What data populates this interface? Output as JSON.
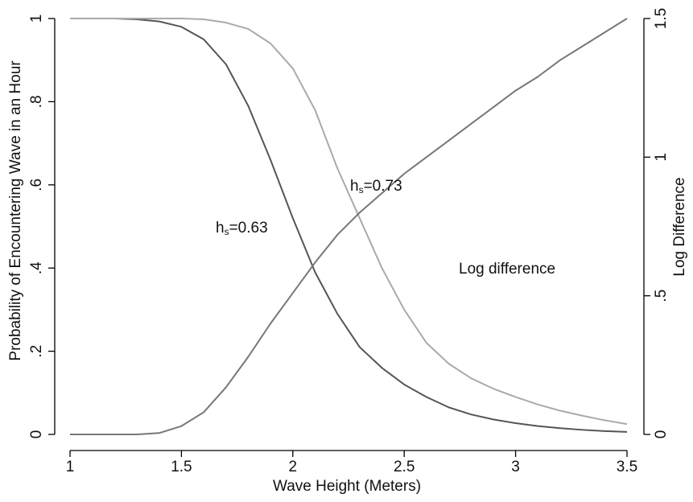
{
  "chart_data": {
    "type": "line",
    "x_label": "Wave Height (Meters)",
    "y_label": "Probability of Encountering Wave in an Hour",
    "y2_label": "Log Difference",
    "x": [
      1.0,
      1.1,
      1.2,
      1.3,
      1.4,
      1.5,
      1.6,
      1.7,
      1.8,
      1.9,
      2.0,
      2.1,
      2.2,
      2.3,
      2.4,
      2.5,
      2.6,
      2.7,
      2.8,
      2.9,
      3.0,
      3.1,
      3.2,
      3.3,
      3.4,
      3.5
    ],
    "series": [
      {
        "color": "#555555",
        "values": [
          1,
          1,
          1,
          0.998,
          0.993,
          0.98,
          0.95,
          0.89,
          0.79,
          0.66,
          0.52,
          0.39,
          0.29,
          0.21,
          0.16,
          0.12,
          0.09,
          0.065,
          0.048,
          0.036,
          0.027,
          0.02,
          0.015,
          0.011,
          0.008,
          0.006
        ]
      },
      {
        "color": "#aaaaaa",
        "values": [
          1,
          1,
          1,
          1,
          1,
          1,
          0.998,
          0.99,
          0.975,
          0.94,
          0.88,
          0.78,
          0.64,
          0.52,
          0.4,
          0.3,
          0.22,
          0.17,
          0.135,
          0.11,
          0.09,
          0.072,
          0.057,
          0.045,
          0.034,
          0.025
        ]
      },
      {
        "color": "#777777",
        "axis": "y2",
        "values": [
          0,
          0,
          0,
          0,
          0.005,
          0.03,
          0.08,
          0.17,
          0.28,
          0.4,
          0.51,
          0.62,
          0.72,
          0.8,
          0.87,
          0.94,
          1.0,
          1.06,
          1.12,
          1.18,
          1.24,
          1.29,
          1.35,
          1.4,
          1.45,
          1.5
        ]
      }
    ],
    "annotations": [
      {
        "label": "h",
        "subscript": "s",
        "rest": "=0.63"
      },
      {
        "label": "h",
        "subscript": "s",
        "rest": "=0.73"
      },
      {
        "label": "Log difference"
      }
    ],
    "xlim": [
      1,
      3.5
    ],
    "xticks": [
      1,
      1.5,
      2,
      2.5,
      3,
      3.5
    ],
    "ylim": [
      0,
      1
    ],
    "yticks": [
      0,
      {
        "value": 0.2,
        "label": ".2"
      },
      {
        "value": 0.4,
        "label": ".4"
      },
      {
        "value": 0.6,
        "label": ".6"
      },
      {
        "value": 0.8,
        "label": ".8"
      },
      1
    ],
    "y2lim": [
      0,
      1.5
    ],
    "y2ticks": [
      0,
      {
        "value": 0.5,
        "label": ".5"
      },
      1,
      1.5
    ]
  }
}
